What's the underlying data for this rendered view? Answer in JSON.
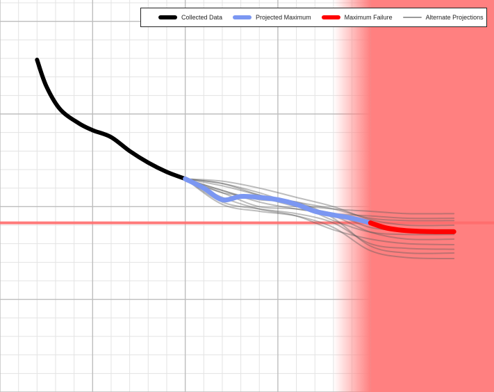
{
  "chart_data": {
    "type": "line",
    "title": "",
    "xlabel": "",
    "ylabel": "",
    "xlim": [
      0,
      10.667
    ],
    "ylim": [
      0,
      8.46
    ],
    "grid": true,
    "legend_position": "top-right",
    "colors": {
      "collected": "#000000",
      "projected": "#7b97f2",
      "failure": "#ff0000",
      "alternate": "#9a9a9a",
      "failure_zone": "#ff8080",
      "threshold_line": "#ff6b6b",
      "grid_major": "#bdbdbd",
      "grid_minor": "#e3e3e3"
    },
    "legend": [
      {
        "name": "Collected Data",
        "color": "#000000",
        "style": "thick"
      },
      {
        "name": "Projected Maximum",
        "color": "#7b97f2",
        "style": "thick"
      },
      {
        "name": "Maximum Failure",
        "color": "#ff0000",
        "style": "thick"
      },
      {
        "name": "Alternate Projections",
        "color": "#9a9a9a",
        "style": "thin"
      }
    ],
    "failure_threshold": 3.65,
    "failure_zone_start": 7.2,
    "failure_zone_solid": 8.0,
    "series": [
      {
        "key": "collected",
        "name": "Collected Data",
        "x": [
          0.8,
          1.0,
          1.3,
          1.7,
          2.0,
          2.4,
          2.8,
          3.2,
          3.6,
          4.0
        ],
        "y": [
          7.17,
          6.6,
          6.1,
          5.8,
          5.65,
          5.5,
          5.2,
          4.95,
          4.75,
          4.6
        ]
      },
      {
        "key": "projected",
        "name": "Projected Maximum",
        "x": [
          4.0,
          4.4,
          4.8,
          5.2,
          5.6,
          6.0,
          6.4,
          6.8,
          7.2,
          7.6,
          8.0
        ],
        "y": [
          4.6,
          4.4,
          4.15,
          4.22,
          4.2,
          4.15,
          4.05,
          3.9,
          3.82,
          3.75,
          3.65
        ]
      },
      {
        "key": "failure",
        "name": "Maximum Failure",
        "x": [
          8.0,
          8.3,
          8.6,
          9.0,
          9.4,
          9.8
        ],
        "y": [
          3.65,
          3.55,
          3.5,
          3.47,
          3.46,
          3.46
        ]
      }
    ],
    "alternate_projections": [
      {
        "x": [
          4.0,
          4.8,
          5.6,
          6.4,
          7.2,
          8.0,
          8.8,
          9.8
        ],
        "y": [
          4.6,
          4.5,
          4.3,
          4.05,
          3.95,
          3.9,
          3.85,
          3.85
        ]
      },
      {
        "x": [
          4.0,
          4.8,
          5.6,
          6.4,
          7.2,
          8.0,
          8.8,
          9.8
        ],
        "y": [
          4.6,
          4.45,
          4.25,
          4.1,
          3.95,
          3.75,
          3.7,
          3.7
        ]
      },
      {
        "x": [
          4.0,
          4.8,
          5.6,
          6.4,
          7.2,
          8.0,
          8.8,
          9.8
        ],
        "y": [
          4.6,
          4.35,
          4.1,
          3.95,
          3.85,
          3.8,
          3.75,
          3.75
        ]
      },
      {
        "x": [
          4.0,
          4.8,
          5.6,
          6.4,
          7.2,
          8.0,
          8.8,
          9.8
        ],
        "y": [
          4.6,
          4.55,
          4.4,
          4.2,
          4.0,
          3.72,
          3.6,
          3.6
        ]
      },
      {
        "x": [
          4.0,
          4.8,
          5.6,
          6.4,
          7.2,
          8.0,
          8.8,
          9.8
        ],
        "y": [
          4.6,
          4.3,
          4.2,
          4.0,
          3.85,
          3.55,
          3.5,
          3.5
        ]
      },
      {
        "x": [
          4.0,
          4.8,
          5.6,
          6.4,
          7.2,
          8.0,
          8.8,
          9.8
        ],
        "y": [
          4.6,
          4.5,
          4.25,
          4.05,
          3.7,
          3.45,
          3.4,
          3.4
        ]
      },
      {
        "x": [
          4.0,
          4.8,
          5.6,
          6.4,
          7.2,
          8.0,
          8.8,
          9.8
        ],
        "y": [
          4.6,
          4.3,
          4.0,
          3.95,
          3.8,
          3.45,
          3.3,
          3.3
        ]
      },
      {
        "x": [
          4.0,
          4.8,
          5.6,
          6.4,
          7.2,
          8.0,
          8.8,
          9.8
        ],
        "y": [
          4.6,
          4.2,
          3.95,
          3.8,
          3.5,
          3.3,
          3.2,
          3.18
        ]
      },
      {
        "x": [
          4.0,
          4.8,
          5.6,
          6.4,
          7.2,
          8.0,
          8.8,
          9.8
        ],
        "y": [
          4.6,
          4.1,
          3.95,
          3.85,
          3.65,
          3.2,
          3.1,
          3.08
        ]
      },
      {
        "x": [
          4.0,
          4.8,
          5.6,
          6.4,
          7.2,
          8.0,
          8.8,
          9.8
        ],
        "y": [
          4.6,
          4.35,
          4.15,
          4.1,
          3.75,
          3.15,
          3.0,
          3.0
        ]
      },
      {
        "x": [
          4.0,
          4.8,
          5.6,
          6.4,
          7.2,
          8.0,
          8.8,
          9.8
        ],
        "y": [
          4.6,
          4.05,
          3.9,
          3.8,
          3.55,
          3.05,
          2.9,
          2.88
        ]
      }
    ]
  }
}
